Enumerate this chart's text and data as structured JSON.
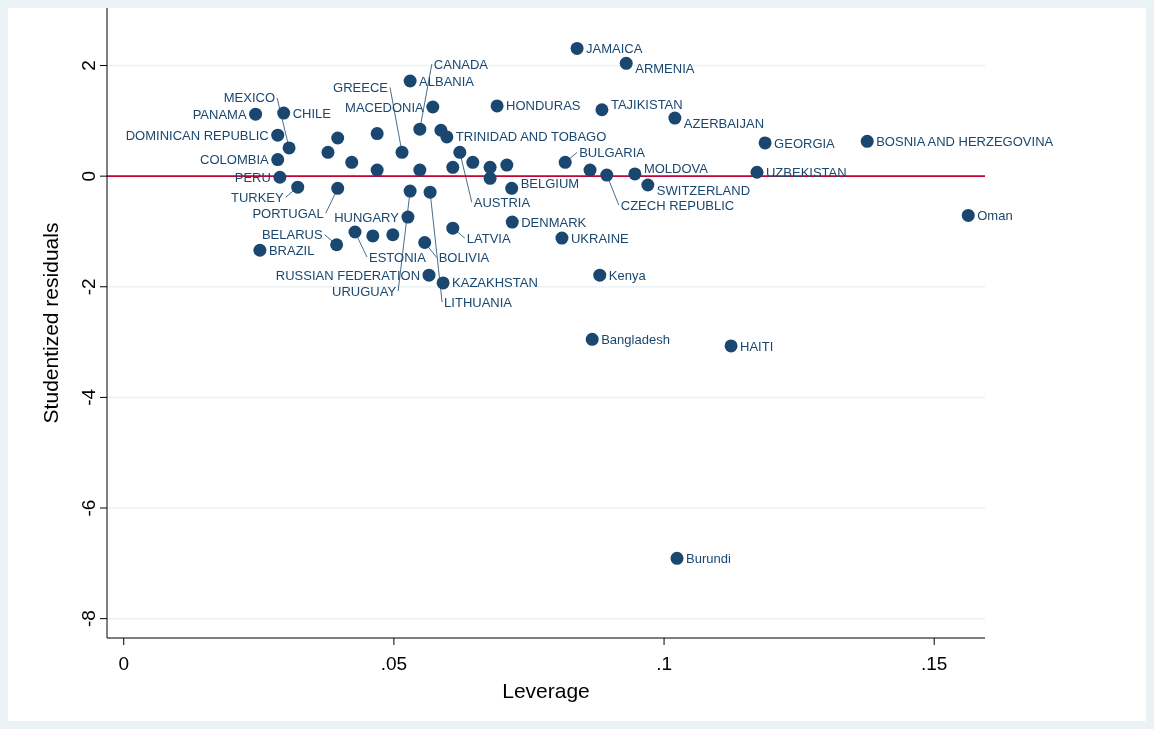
{
  "chart_data": {
    "type": "scatter",
    "xlabel": "Leverage",
    "ylabel": "Studentized residuals",
    "xlim": [
      -0.0031,
      0.1594
    ],
    "ylim": [
      -8.35,
      3.04
    ],
    "xticks": [
      0,
      {
        "value": 0.05,
        "label": ".05"
      },
      {
        "value": 0.1,
        "label": ".1"
      },
      {
        "value": 0.15,
        "label": ".15"
      }
    ],
    "yticks": [
      -8,
      -6,
      -4,
      -2,
      0,
      2
    ],
    "grid": "y",
    "marker": "circle",
    "ref_lines": [
      {
        "axis": "y",
        "value": 0,
        "color": "#c10534"
      }
    ],
    "series": [
      {
        "color": "#1a476f",
        "x": [
          0.0839,
          0.093,
          0.053,
          0.0572,
          0.0691,
          0.0885,
          0.102,
          0.0244,
          0.0296,
          0.0285,
          0.1187,
          0.1376,
          0.1172,
          0.1563,
          0.097,
          0.0289,
          0.0322,
          0.0396,
          0.0526,
          0.0719,
          0.0609,
          0.0811,
          0.0428,
          0.0252,
          0.0394,
          0.0557,
          0.0565,
          0.0591,
          0.0881,
          0.0867,
          0.1124,
          0.1024,
          0.0285,
          0.0306,
          0.0548,
          0.0598,
          0.0622,
          0.0515,
          0.0817,
          0.0894,
          0.0946,
          0.0718,
          0.053,
          0.0567,
          0.0396,
          0.0378,
          0.0422,
          0.0469,
          0.0469,
          0.0548,
          0.0609,
          0.0587,
          0.0646,
          0.0678,
          0.0678,
          0.0709,
          0.0863,
          0.0461,
          0.0498
        ],
        "values": [
          2.31,
          2.04,
          1.72,
          1.25,
          1.27,
          1.2,
          1.05,
          1.12,
          1.14,
          0.74,
          0.6,
          0.63,
          0.07,
          -0.71,
          -0.16,
          -0.02,
          -0.2,
          -0.22,
          -0.74,
          -0.83,
          -0.94,
          -1.12,
          -1.01,
          -1.34,
          -1.24,
          -1.2,
          -1.79,
          -1.93,
          -1.79,
          -2.95,
          -3.07,
          -6.91,
          0.3,
          0.51,
          0.85,
          0.71,
          0.43,
          0.43,
          0.25,
          0.02,
          0.04,
          -0.22,
          -0.27,
          -0.29,
          0.69,
          0.43,
          0.25,
          0.77,
          0.11,
          0.11,
          0.16,
          0.83,
          0.25,
          0.16,
          -0.04,
          0.2,
          0.11,
          -1.08,
          -1.06
        ]
      }
    ],
    "annotations": [
      {
        "text": "JAMAICA",
        "x": 0.0839,
        "y": 2.31
      },
      {
        "text": "ARMENIA",
        "x": 0.093,
        "y": 2.04
      },
      {
        "text": "ALBANIA",
        "x": 0.053,
        "y": 1.72
      },
      {
        "text": "MACEDONIA",
        "x": 0.0572,
        "y": 1.25
      },
      {
        "text": "HONDURAS",
        "x": 0.0691,
        "y": 1.27
      },
      {
        "text": "TAJIKISTAN",
        "x": 0.0885,
        "y": 1.2
      },
      {
        "text": "AZERBAIJAN",
        "x": 0.102,
        "y": 1.05
      },
      {
        "text": "PANAMA",
        "x": 0.0244,
        "y": 1.12
      },
      {
        "text": "CHILE",
        "x": 0.0296,
        "y": 1.14
      },
      {
        "text": "DOMINICAN REPUBLIC",
        "x": 0.0285,
        "y": 0.74
      },
      {
        "text": "GEORGIA",
        "x": 0.1187,
        "y": 0.6
      },
      {
        "text": "BOSNIA AND HERZEGOVINA",
        "x": 0.1376,
        "y": 0.63
      },
      {
        "text": "UZBEKISTAN",
        "x": 0.1172,
        "y": 0.07
      },
      {
        "text": "Oman",
        "x": 0.1563,
        "y": -0.71
      },
      {
        "text": "SWITZERLAND",
        "x": 0.097,
        "y": -0.16
      },
      {
        "text": "PERU",
        "x": 0.0289,
        "y": -0.02
      },
      {
        "text": "TURKEY",
        "x": 0.0322,
        "y": -0.2
      },
      {
        "text": "PORTUGAL",
        "x": 0.0396,
        "y": -0.22
      },
      {
        "text": "HUNGARY",
        "x": 0.0526,
        "y": -0.74
      },
      {
        "text": "DENMARK",
        "x": 0.0719,
        "y": -0.83
      },
      {
        "text": "LATVIA",
        "x": 0.0609,
        "y": -0.94
      },
      {
        "text": "UKRAINE",
        "x": 0.0811,
        "y": -1.12
      },
      {
        "text": "ESTONIA",
        "x": 0.0428,
        "y": -1.01
      },
      {
        "text": "BRAZIL",
        "x": 0.0252,
        "y": -1.34
      },
      {
        "text": "BELARUS",
        "x": 0.0394,
        "y": -1.24
      },
      {
        "text": "BOLIVIA",
        "x": 0.0557,
        "y": -1.2
      },
      {
        "text": "RUSSIAN FEDERATION",
        "x": 0.0565,
        "y": -1.79
      },
      {
        "text": "KAZAKHSTAN",
        "x": 0.0591,
        "y": -1.93
      },
      {
        "text": "Kenya",
        "x": 0.0881,
        "y": -1.79
      },
      {
        "text": "Bangladesh",
        "x": 0.0867,
        "y": -2.95
      },
      {
        "text": "HAITI",
        "x": 0.1124,
        "y": -3.07
      },
      {
        "text": "Burundi",
        "x": 0.1024,
        "y": -6.91
      },
      {
        "text": "COLOMBIA",
        "x": 0.0285,
        "y": 0.3
      },
      {
        "text": "MEXICO",
        "x": 0.0306,
        "y": 0.51
      },
      {
        "text": "CANADA",
        "x": 0.0548,
        "y": 0.85
      },
      {
        "text": "TRINIDAD AND TOBAGO",
        "x": 0.0598,
        "y": 0.71
      },
      {
        "text": "AUSTRIA",
        "x": 0.0622,
        "y": 0.43
      },
      {
        "text": "GREECE",
        "x": 0.0515,
        "y": 0.43
      },
      {
        "text": "BULGARIA",
        "x": 0.0817,
        "y": 0.25
      },
      {
        "text": "CZECH REPUBLIC",
        "x": 0.0894,
        "y": 0.02
      },
      {
        "text": "MOLDOVA",
        "x": 0.0946,
        "y": 0.04
      },
      {
        "text": "BELGIUM",
        "x": 0.0718,
        "y": -0.22
      },
      {
        "text": "URUGUAY",
        "x": 0.053,
        "y": -0.27
      },
      {
        "text": "LITHUANIA",
        "x": 0.0567,
        "y": -0.29
      }
    ]
  }
}
